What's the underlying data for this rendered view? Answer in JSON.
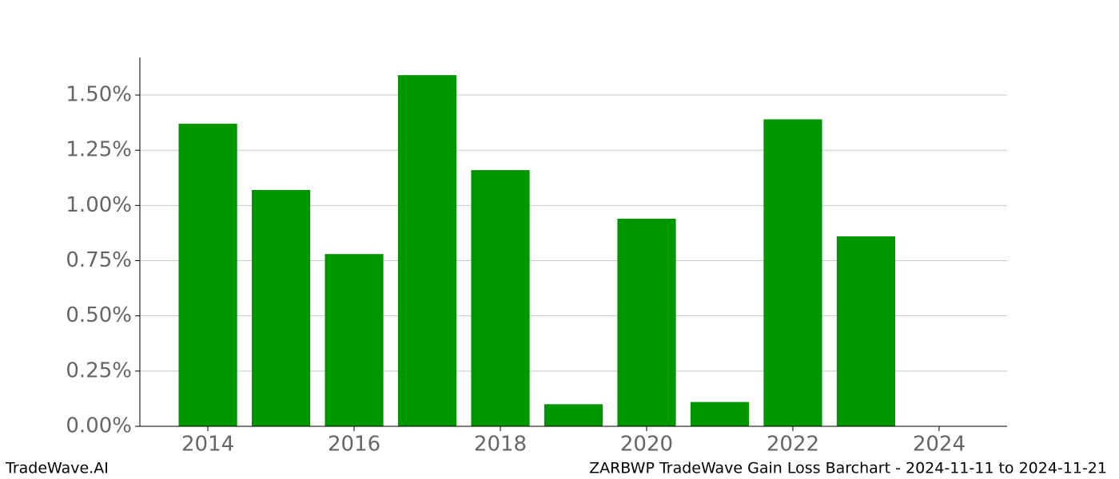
{
  "chart_data": {
    "type": "bar",
    "title": "ZARBWP TradeWave Gain Loss Barchart - 2024-11-11 to 2024-11-21",
    "watermark": "TradeWave.AI",
    "x": [
      2014,
      2015,
      2016,
      2017,
      2018,
      2019,
      2020,
      2021,
      2022,
      2023
    ],
    "values": [
      1.37,
      1.07,
      0.78,
      1.59,
      1.16,
      0.1,
      0.94,
      0.11,
      1.39,
      0.86
    ],
    "color": "#009600",
    "xlim": [
      2013.07,
      2024.93
    ],
    "xticks": [
      2014,
      2016,
      2018,
      2020,
      2022,
      2024
    ],
    "ylim": [
      0,
      1.67
    ],
    "yticks": [
      {
        "value": 0,
        "label": "0.00%"
      },
      {
        "value": 0.25,
        "label": "0.25%"
      },
      {
        "value": 0.5,
        "label": "0.50%"
      },
      {
        "value": 0.75,
        "label": "0.75%"
      },
      {
        "value": 1.0,
        "label": "1.00%"
      },
      {
        "value": 1.25,
        "label": "1.25%"
      },
      {
        "value": 1.5,
        "label": "1.50%"
      }
    ],
    "grid": true
  }
}
